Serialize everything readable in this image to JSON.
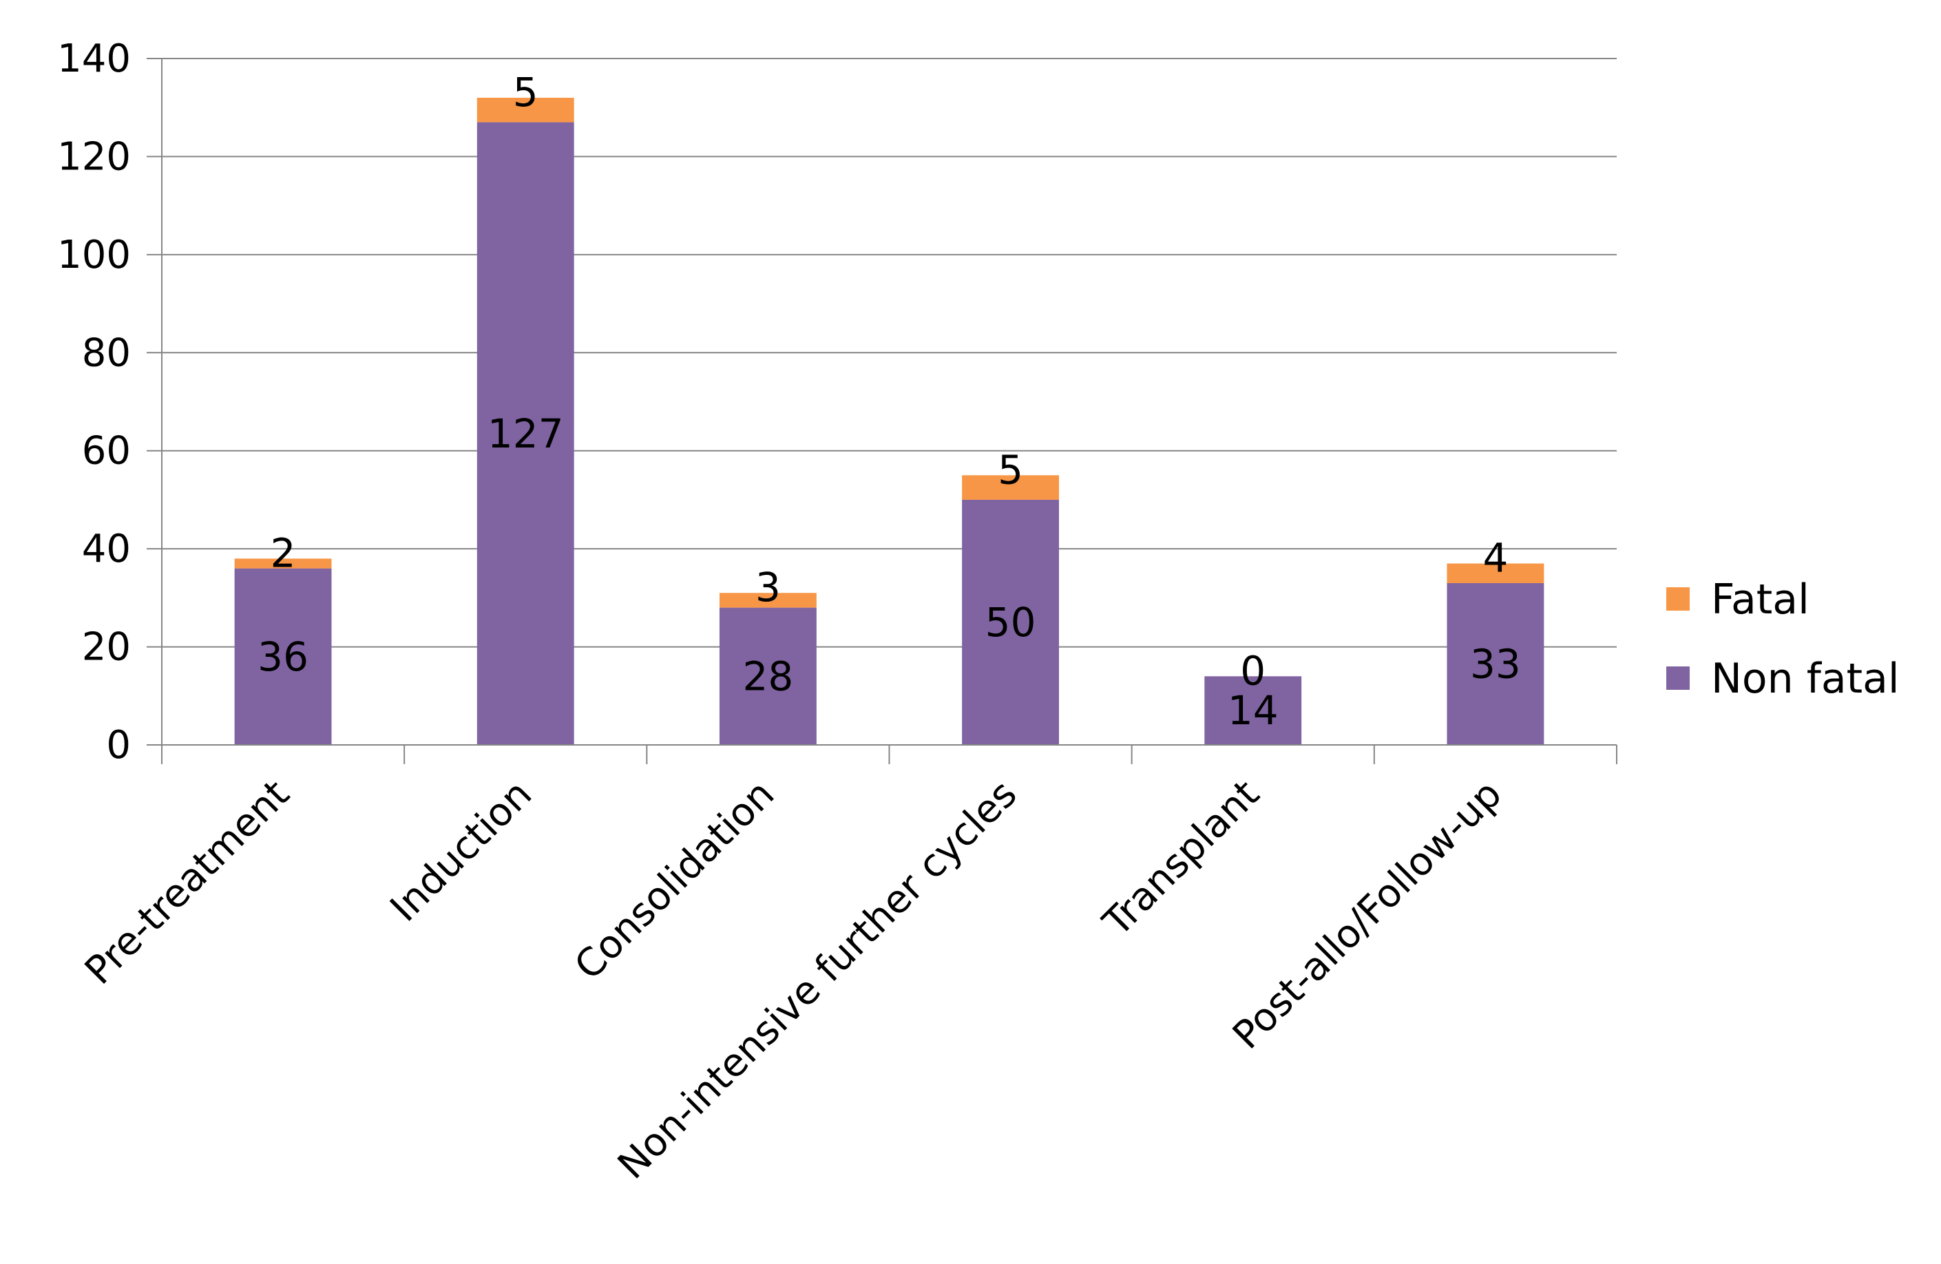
{
  "chart_data": {
    "type": "bar",
    "stacked": true,
    "categories": [
      "Pre-treatment",
      "Induction",
      "Consolidation",
      "Non-intensive further cycles",
      "Transplant",
      "Post-allo/Follow-up"
    ],
    "series": [
      {
        "name": "Non fatal",
        "values": [
          36,
          127,
          28,
          50,
          14,
          33
        ],
        "color": "#8064A2"
      },
      {
        "name": "Fatal",
        "values": [
          2,
          5,
          3,
          5,
          0,
          4
        ],
        "color": "#F79646"
      }
    ],
    "ylim": [
      0,
      140
    ],
    "yticks": [
      0,
      20,
      40,
      60,
      80,
      100,
      120,
      140
    ],
    "grid": true,
    "legend_position": "right",
    "legend_order": [
      "Fatal",
      "Non fatal"
    ],
    "data_labels": true
  }
}
